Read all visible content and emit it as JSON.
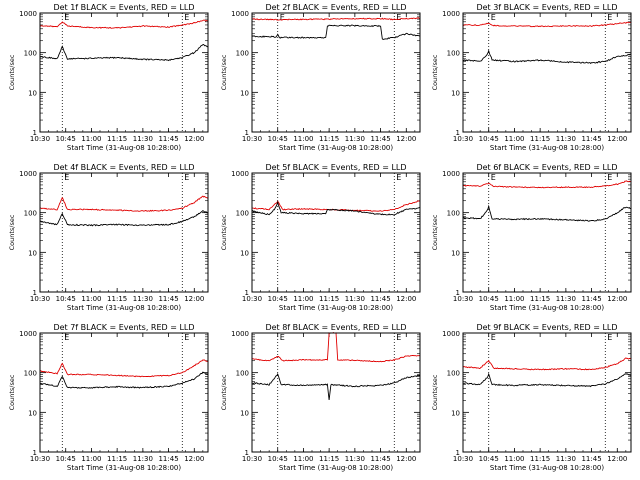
{
  "colors": {
    "events": "#000000",
    "lld": "#e00000",
    "axes": "#000000",
    "background": "#ffffff"
  },
  "chart_data": [
    {
      "type": "line",
      "title": "Det 1f BLACK = Events, RED = LLD",
      "xlabel": "Start Time (31-Aug-08 10:28:00)",
      "ylabel": "Counts/sec",
      "yscale": "log",
      "ylim": [
        1,
        1000
      ],
      "xlim": [
        "10:30",
        "12:08"
      ],
      "x_tick_labels": [
        "10:30",
        "10:45",
        "11:00",
        "11:15",
        "11:30",
        "11:45",
        "12:00"
      ],
      "y_tick_labels": [
        "1",
        "10",
        "100",
        "1000"
      ],
      "markers": [
        {
          "time": "10:43",
          "label": "E"
        },
        {
          "time": "11:53",
          "label": "E"
        }
      ],
      "grid": false,
      "legend": "in title",
      "series": [
        {
          "color": "red",
          "time": [
            "10:30",
            "10:40",
            "10:43",
            "10:46",
            "11:00",
            "11:15",
            "11:30",
            "11:45",
            "11:53",
            "12:00",
            "12:05",
            "12:08"
          ],
          "values": [
            480,
            450,
            600,
            470,
            430,
            420,
            470,
            440,
            500,
            560,
            650,
            630
          ]
        },
        {
          "color": "black",
          "time": [
            "10:30",
            "10:40",
            "10:43",
            "10:46",
            "11:00",
            "11:15",
            "11:30",
            "11:45",
            "11:53",
            "12:00",
            "12:05",
            "12:08"
          ],
          "values": [
            80,
            70,
            140,
            70,
            72,
            75,
            68,
            65,
            75,
            100,
            160,
            140
          ]
        }
      ]
    },
    {
      "type": "line",
      "title": "Det 2f BLACK = Events, RED = LLD",
      "xlabel": "Start Time (31-Aug-08 10:28:00)",
      "ylabel": "Counts/sec",
      "yscale": "log",
      "ylim": [
        1,
        1000
      ],
      "xlim": [
        "10:30",
        "12:08"
      ],
      "x_tick_labels": [
        "10:30",
        "10:45",
        "11:00",
        "11:15",
        "11:30",
        "11:45",
        "12:00"
      ],
      "y_tick_labels": [
        "1",
        "10",
        "100",
        "1000"
      ],
      "markers": [
        {
          "time": "10:45",
          "label": "E"
        },
        {
          "time": "11:53",
          "label": "E"
        }
      ],
      "grid": false,
      "legend": "in title",
      "series": [
        {
          "color": "red",
          "time": [
            "10:30",
            "10:45",
            "11:00",
            "11:15",
            "11:30",
            "11:45",
            "11:53",
            "12:00",
            "12:08"
          ],
          "values": [
            700,
            680,
            690,
            700,
            720,
            720,
            690,
            720,
            740
          ]
        },
        {
          "color": "black",
          "time": [
            "10:30",
            "10:44",
            "10:45",
            "10:46",
            "11:00",
            "11:13",
            "11:14",
            "11:30",
            "11:45",
            "11:46",
            "11:53",
            "12:00",
            "12:08"
          ],
          "values": [
            260,
            250,
            300,
            240,
            240,
            240,
            480,
            480,
            470,
            220,
            240,
            300,
            260
          ]
        }
      ]
    },
    {
      "type": "line",
      "title": "Det 3f BLACK = Events, RED = LLD",
      "xlabel": "Start Time (31-Aug-08 10:28:00)",
      "ylabel": "Counts/sec",
      "yscale": "log",
      "ylim": [
        1,
        1000
      ],
      "xlim": [
        "10:30",
        "12:08"
      ],
      "x_tick_labels": [
        "10:30",
        "10:45",
        "11:00",
        "11:15",
        "11:30",
        "11:45",
        "12:00"
      ],
      "y_tick_labels": [
        "1",
        "10",
        "100",
        "1000"
      ],
      "markers": [
        {
          "time": "10:45",
          "label": "E"
        },
        {
          "time": "11:53",
          "label": "E"
        }
      ],
      "grid": false,
      "legend": "in title",
      "series": [
        {
          "color": "red",
          "time": [
            "10:30",
            "10:40",
            "10:45",
            "10:48",
            "11:00",
            "11:15",
            "11:30",
            "11:45",
            "11:53",
            "12:00",
            "12:08"
          ],
          "values": [
            500,
            490,
            560,
            480,
            470,
            460,
            470,
            470,
            500,
            540,
            580
          ]
        },
        {
          "color": "black",
          "time": [
            "10:30",
            "10:40",
            "10:44",
            "10:45",
            "10:47",
            "11:00",
            "11:15",
            "11:30",
            "11:45",
            "11:53",
            "12:00",
            "12:08"
          ],
          "values": [
            65,
            60,
            90,
            110,
            65,
            60,
            65,
            58,
            55,
            60,
            80,
            90
          ]
        }
      ]
    },
    {
      "type": "line",
      "title": "Det 4f BLACK = Events, RED = LLD",
      "xlabel": "Start Time (31-Aug-08 10:28:00)",
      "ylabel": "Counts/sec",
      "yscale": "log",
      "ylim": [
        1,
        1000
      ],
      "xlim": [
        "10:30",
        "12:08"
      ],
      "x_tick_labels": [
        "10:30",
        "10:45",
        "11:00",
        "11:15",
        "11:30",
        "11:45",
        "12:00"
      ],
      "y_tick_labels": [
        "1",
        "10",
        "100",
        "1000"
      ],
      "markers": [
        {
          "time": "10:43",
          "label": "E"
        },
        {
          "time": "11:53",
          "label": "E"
        }
      ],
      "grid": false,
      "legend": "in title",
      "series": [
        {
          "color": "red",
          "time": [
            "10:30",
            "10:40",
            "10:43",
            "10:46",
            "11:00",
            "11:15",
            "11:30",
            "11:45",
            "11:53",
            "12:00",
            "12:05",
            "12:08"
          ],
          "values": [
            130,
            120,
            240,
            120,
            120,
            115,
            110,
            115,
            130,
            180,
            260,
            230
          ]
        },
        {
          "color": "black",
          "time": [
            "10:30",
            "10:40",
            "10:43",
            "10:46",
            "11:00",
            "11:15",
            "11:30",
            "11:45",
            "11:53",
            "12:00",
            "12:05",
            "12:08"
          ],
          "values": [
            60,
            50,
            95,
            50,
            48,
            50,
            48,
            50,
            60,
            80,
            110,
            100
          ]
        }
      ]
    },
    {
      "type": "line",
      "title": "Det 5f BLACK = Events, RED = LLD",
      "xlabel": "Start Time (31-Aug-08 10:28:00)",
      "ylabel": "Counts/sec",
      "yscale": "log",
      "ylim": [
        1,
        1000
      ],
      "xlim": [
        "10:30",
        "12:08"
      ],
      "x_tick_labels": [
        "10:30",
        "10:45",
        "11:00",
        "11:15",
        "11:30",
        "11:45",
        "12:00"
      ],
      "y_tick_labels": [
        "1",
        "10",
        "100",
        "1000"
      ],
      "markers": [
        {
          "time": "10:45",
          "label": "E"
        },
        {
          "time": "11:53",
          "label": "E"
        }
      ],
      "grid": false,
      "legend": "in title",
      "series": [
        {
          "color": "red",
          "time": [
            "10:30",
            "10:40",
            "10:45",
            "10:48",
            "11:00",
            "11:15",
            "11:30",
            "11:45",
            "11:53",
            "12:00",
            "12:08"
          ],
          "values": [
            130,
            120,
            190,
            120,
            125,
            120,
            115,
            110,
            120,
            160,
            200
          ]
        },
        {
          "color": "black",
          "time": [
            "10:30",
            "10:40",
            "10:43",
            "10:45",
            "10:47",
            "11:00",
            "11:13",
            "11:14",
            "11:30",
            "11:45",
            "11:53",
            "12:00",
            "12:08"
          ],
          "values": [
            110,
            90,
            120,
            180,
            100,
            95,
            95,
            120,
            110,
            90,
            90,
            120,
            130
          ]
        }
      ]
    },
    {
      "type": "line",
      "title": "Det 6f BLACK = Events, RED = LLD",
      "xlabel": "Start Time (31-Aug-08 10:28:00)",
      "ylabel": "Counts/sec",
      "yscale": "log",
      "ylim": [
        1,
        1000
      ],
      "xlim": [
        "10:30",
        "12:08"
      ],
      "x_tick_labels": [
        "10:30",
        "10:45",
        "11:00",
        "11:15",
        "11:30",
        "11:45",
        "12:00"
      ],
      "y_tick_labels": [
        "1",
        "10",
        "100",
        "1000"
      ],
      "markers": [
        {
          "time": "10:45",
          "label": "E"
        },
        {
          "time": "11:53",
          "label": "E"
        }
      ],
      "grid": false,
      "legend": "in title",
      "series": [
        {
          "color": "red",
          "time": [
            "10:30",
            "10:40",
            "10:45",
            "10:48",
            "11:00",
            "11:15",
            "11:30",
            "11:45",
            "11:53",
            "12:00",
            "12:05",
            "12:08"
          ],
          "values": [
            480,
            470,
            560,
            460,
            440,
            430,
            440,
            440,
            470,
            520,
            620,
            600
          ]
        },
        {
          "color": "black",
          "time": [
            "10:30",
            "10:40",
            "10:44",
            "10:45",
            "10:47",
            "11:00",
            "11:15",
            "11:30",
            "11:45",
            "11:53",
            "12:00",
            "12:05",
            "12:08"
          ],
          "values": [
            75,
            70,
            110,
            140,
            70,
            68,
            70,
            66,
            62,
            68,
            100,
            140,
            130
          ]
        }
      ]
    },
    {
      "type": "line",
      "title": "Det 7f BLACK = Events, RED = LLD",
      "xlabel": "Start Time (31-Aug-08 10:28:00)",
      "ylabel": "Counts/sec",
      "yscale": "log",
      "ylim": [
        1,
        1000
      ],
      "xlim": [
        "10:30",
        "12:08"
      ],
      "x_tick_labels": [
        "10:30",
        "10:45",
        "11:00",
        "11:15",
        "11:30",
        "11:45",
        "12:00"
      ],
      "y_tick_labels": [
        "1",
        "10",
        "100",
        "1000"
      ],
      "markers": [
        {
          "time": "10:43",
          "label": "E"
        },
        {
          "time": "11:53",
          "label": "E"
        }
      ],
      "grid": false,
      "legend": "in title",
      "series": [
        {
          "color": "red",
          "time": [
            "10:30",
            "10:40",
            "10:43",
            "10:46",
            "11:00",
            "11:15",
            "11:30",
            "11:45",
            "11:53",
            "12:00",
            "12:05",
            "12:08"
          ],
          "values": [
            110,
            95,
            170,
            90,
            90,
            85,
            80,
            85,
            100,
            150,
            210,
            190
          ]
        },
        {
          "color": "black",
          "time": [
            "10:30",
            "10:40",
            "10:43",
            "10:46",
            "11:00",
            "11:15",
            "11:30",
            "11:45",
            "11:53",
            "12:00",
            "12:05",
            "12:08"
          ],
          "values": [
            55,
            45,
            80,
            42,
            42,
            44,
            42,
            45,
            55,
            70,
            100,
            90
          ]
        }
      ]
    },
    {
      "type": "line",
      "title": "Det 8f BLACK = Events, RED = LLD",
      "xlabel": "Start Time (31-Aug-08 10:28:00)",
      "ylabel": "Counts/sec",
      "yscale": "log",
      "ylim": [
        1,
        1000
      ],
      "xlim": [
        "10:30",
        "12:08"
      ],
      "x_tick_labels": [
        "10:30",
        "10:45",
        "11:00",
        "11:15",
        "11:30",
        "11:45",
        "12:00"
      ],
      "y_tick_labels": [
        "1",
        "10",
        "100",
        "1000"
      ],
      "markers": [
        {
          "time": "10:45",
          "label": "E"
        },
        {
          "time": "11:53",
          "label": "E"
        }
      ],
      "grid": false,
      "legend": "in title",
      "series": [
        {
          "color": "red",
          "time": [
            "10:30",
            "10:40",
            "10:45",
            "10:48",
            "11:00",
            "11:14",
            "11:15",
            "11:19",
            "11:20",
            "11:30",
            "11:45",
            "11:53",
            "12:00",
            "12:08"
          ],
          "values": [
            220,
            200,
            260,
            200,
            210,
            210,
            1000,
            1000,
            210,
            205,
            190,
            210,
            260,
            270
          ]
        },
        {
          "color": "black",
          "time": [
            "10:30",
            "10:40",
            "10:44",
            "10:45",
            "10:47",
            "11:00",
            "11:14",
            "11:15",
            "11:16",
            "11:30",
            "11:45",
            "11:53",
            "12:00",
            "12:08"
          ],
          "values": [
            55,
            50,
            80,
            95,
            50,
            48,
            50,
            20,
            50,
            45,
            48,
            55,
            75,
            85
          ]
        }
      ]
    },
    {
      "type": "line",
      "title": "Det 9f BLACK = Events, RED = LLD",
      "xlabel": "Start Time (31-Aug-08 10:28:00)",
      "ylabel": "Counts/sec",
      "yscale": "log",
      "ylim": [
        1,
        1000
      ],
      "xlim": [
        "10:30",
        "12:08"
      ],
      "x_tick_labels": [
        "10:30",
        "10:45",
        "11:00",
        "11:15",
        "11:30",
        "11:45",
        "12:00"
      ],
      "y_tick_labels": [
        "1",
        "10",
        "100",
        "1000"
      ],
      "markers": [
        {
          "time": "10:45",
          "label": "E"
        },
        {
          "time": "11:53",
          "label": "E"
        }
      ],
      "grid": false,
      "legend": "in title",
      "series": [
        {
          "color": "red",
          "time": [
            "10:30",
            "10:40",
            "10:45",
            "10:48",
            "11:00",
            "11:15",
            "11:30",
            "11:45",
            "11:53",
            "12:00",
            "12:05",
            "12:08"
          ],
          "values": [
            140,
            130,
            200,
            130,
            125,
            120,
            125,
            120,
            135,
            170,
            230,
            220
          ]
        },
        {
          "color": "black",
          "time": [
            "10:30",
            "10:40",
            "10:44",
            "10:45",
            "10:47",
            "11:00",
            "11:15",
            "11:30",
            "11:45",
            "11:53",
            "12:00",
            "12:05",
            "12:08"
          ],
          "values": [
            55,
            50,
            75,
            90,
            50,
            48,
            50,
            47,
            46,
            52,
            70,
            95,
            85
          ]
        }
      ]
    }
  ]
}
